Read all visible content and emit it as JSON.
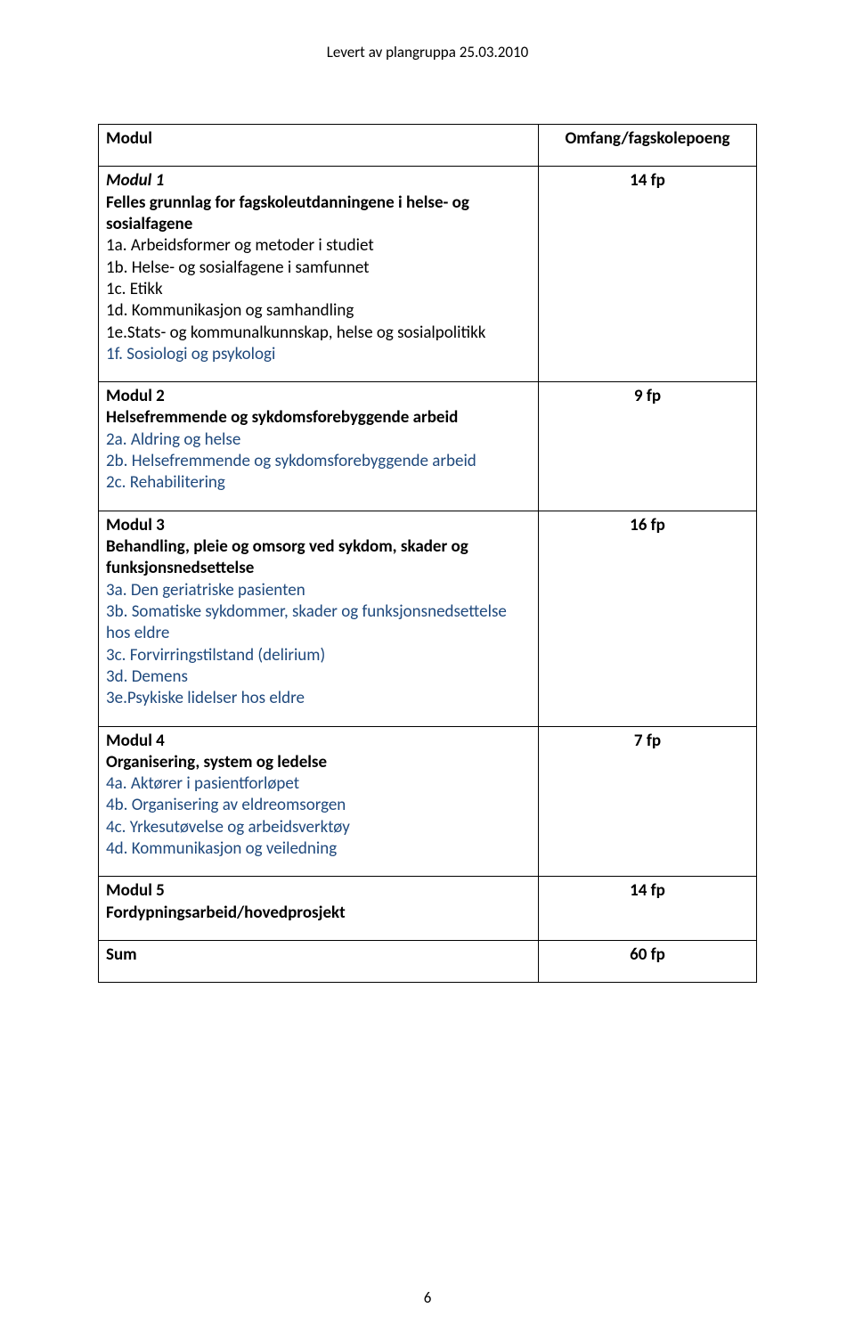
{
  "header": "Levert av plangruppa 25.03.2010",
  "table": {
    "col_left_header": "Modul",
    "col_right_header": "Omfang/fagskolepoeng",
    "modules": [
      {
        "title": "Modul 1",
        "subtitle": "Felles grunnlag for fagskoleutdanningene i helse- og sosialfagene",
        "lines": [
          "1a. Arbeidsformer og metoder i studiet",
          "1b. Helse- og sosialfagene i samfunnet",
          "1c. Etikk",
          "1d. Kommunikasjon og samhandling",
          "1e.Stats- og kommunalkunnskap, helse og sosialpolitikk",
          "1f. Sosiologi og psykologi"
        ],
        "points": "14 fp"
      },
      {
        "title": "Modul 2",
        "subtitle": "Helsefremmende og sykdomsforebyggende arbeid",
        "lines": [
          "2a. Aldring og helse",
          "2b. Helsefremmende og sykdomsforebyggende arbeid",
          "2c. Rehabilitering"
        ],
        "points": "9 fp"
      },
      {
        "title": "Modul 3",
        "subtitle": "Behandling, pleie og omsorg ved sykdom, skader og funksjonsnedsettelse",
        "lines": [
          "3a. Den geriatriske pasienten",
          "3b. Somatiske sykdommer, skader og funksjonsnedsettelse hos eldre",
          "3c. Forvirringstilstand (delirium)",
          "3d. Demens",
          "3e.Psykiske lidelser hos eldre"
        ],
        "points": "16 fp"
      },
      {
        "title": "Modul 4",
        "subtitle": "Organisering, system og ledelse",
        "lines": [
          "4a. Aktører i pasientforløpet",
          "4b. Organisering av eldreomsorgen",
          "4c. Yrkesutøvelse og arbeidsverktøy",
          "4d. Kommunikasjon og veiledning"
        ],
        "points": "7 fp"
      },
      {
        "title": "Modul 5",
        "subtitle": "Fordypningsarbeid/hovedprosjekt",
        "lines": [],
        "points": "14 fp"
      }
    ],
    "sum_label": "Sum",
    "sum_points": "60 fp"
  },
  "page_number": "6"
}
